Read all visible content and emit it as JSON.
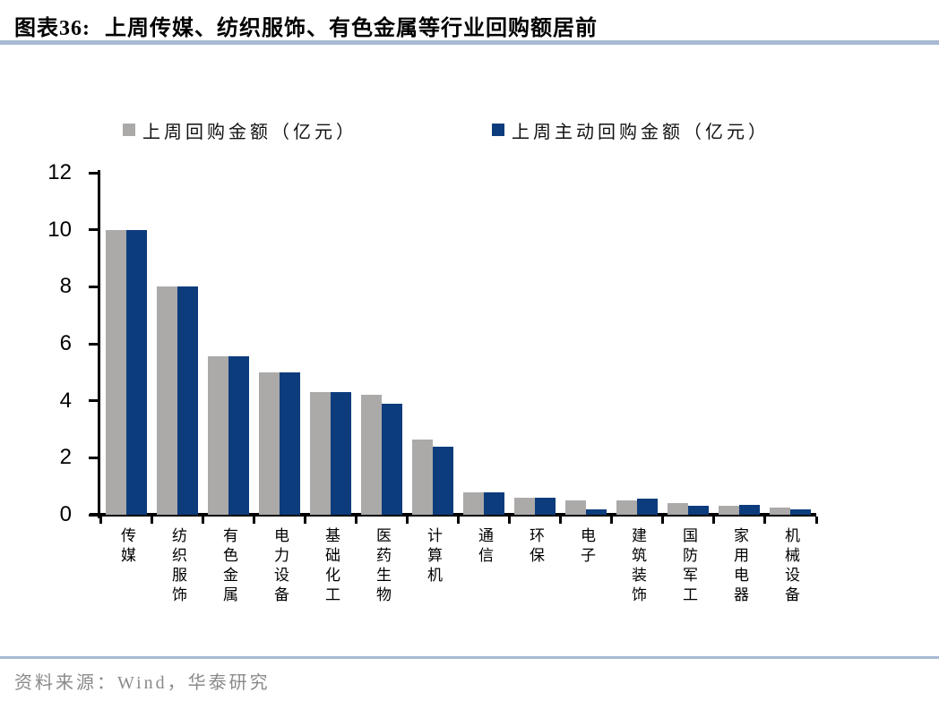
{
  "header": {
    "chart_label": "图表36:",
    "title": "上周传媒、纺织服饰、有色金属等行业回购额居前"
  },
  "footer": {
    "source": "资料来源：Wind，华泰研究"
  },
  "colors": {
    "series_gray": "#ACA9A9",
    "series_blue": "#0C3C7C",
    "rule_line": "#A7BAD2",
    "axis": "#000000",
    "source_text": "#8A8A8A"
  },
  "chart_data": {
    "type": "bar",
    "title": "上周传媒、纺织服饰、有色金属等行业回购额居前",
    "categories": [
      "传媒",
      "纺织服饰",
      "有色金属",
      "电力设备",
      "基础化工",
      "医药生物",
      "计算机",
      "通信",
      "环保",
      "电子",
      "建筑装饰",
      "国防军工",
      "家用电器",
      "机械设备"
    ],
    "series": [
      {
        "name": "上周回购金额（亿元）",
        "color_key": "series_gray",
        "values": [
          10.0,
          8.0,
          5.55,
          5.0,
          4.3,
          4.2,
          2.65,
          0.8,
          0.6,
          0.5,
          0.5,
          0.4,
          0.3,
          0.25
        ]
      },
      {
        "name": "上周主动回购金额（亿元）",
        "color_key": "series_blue",
        "values": [
          10.0,
          8.0,
          5.55,
          5.0,
          4.3,
          3.9,
          2.4,
          0.8,
          0.6,
          0.2,
          0.55,
          0.3,
          0.35,
          0.2
        ]
      }
    ],
    "ylim": [
      0,
      12
    ],
    "yticks": [
      0,
      2,
      4,
      6,
      8,
      10,
      12
    ],
    "xlabel": "",
    "ylabel": "",
    "grid": false,
    "legend_position": "top"
  }
}
